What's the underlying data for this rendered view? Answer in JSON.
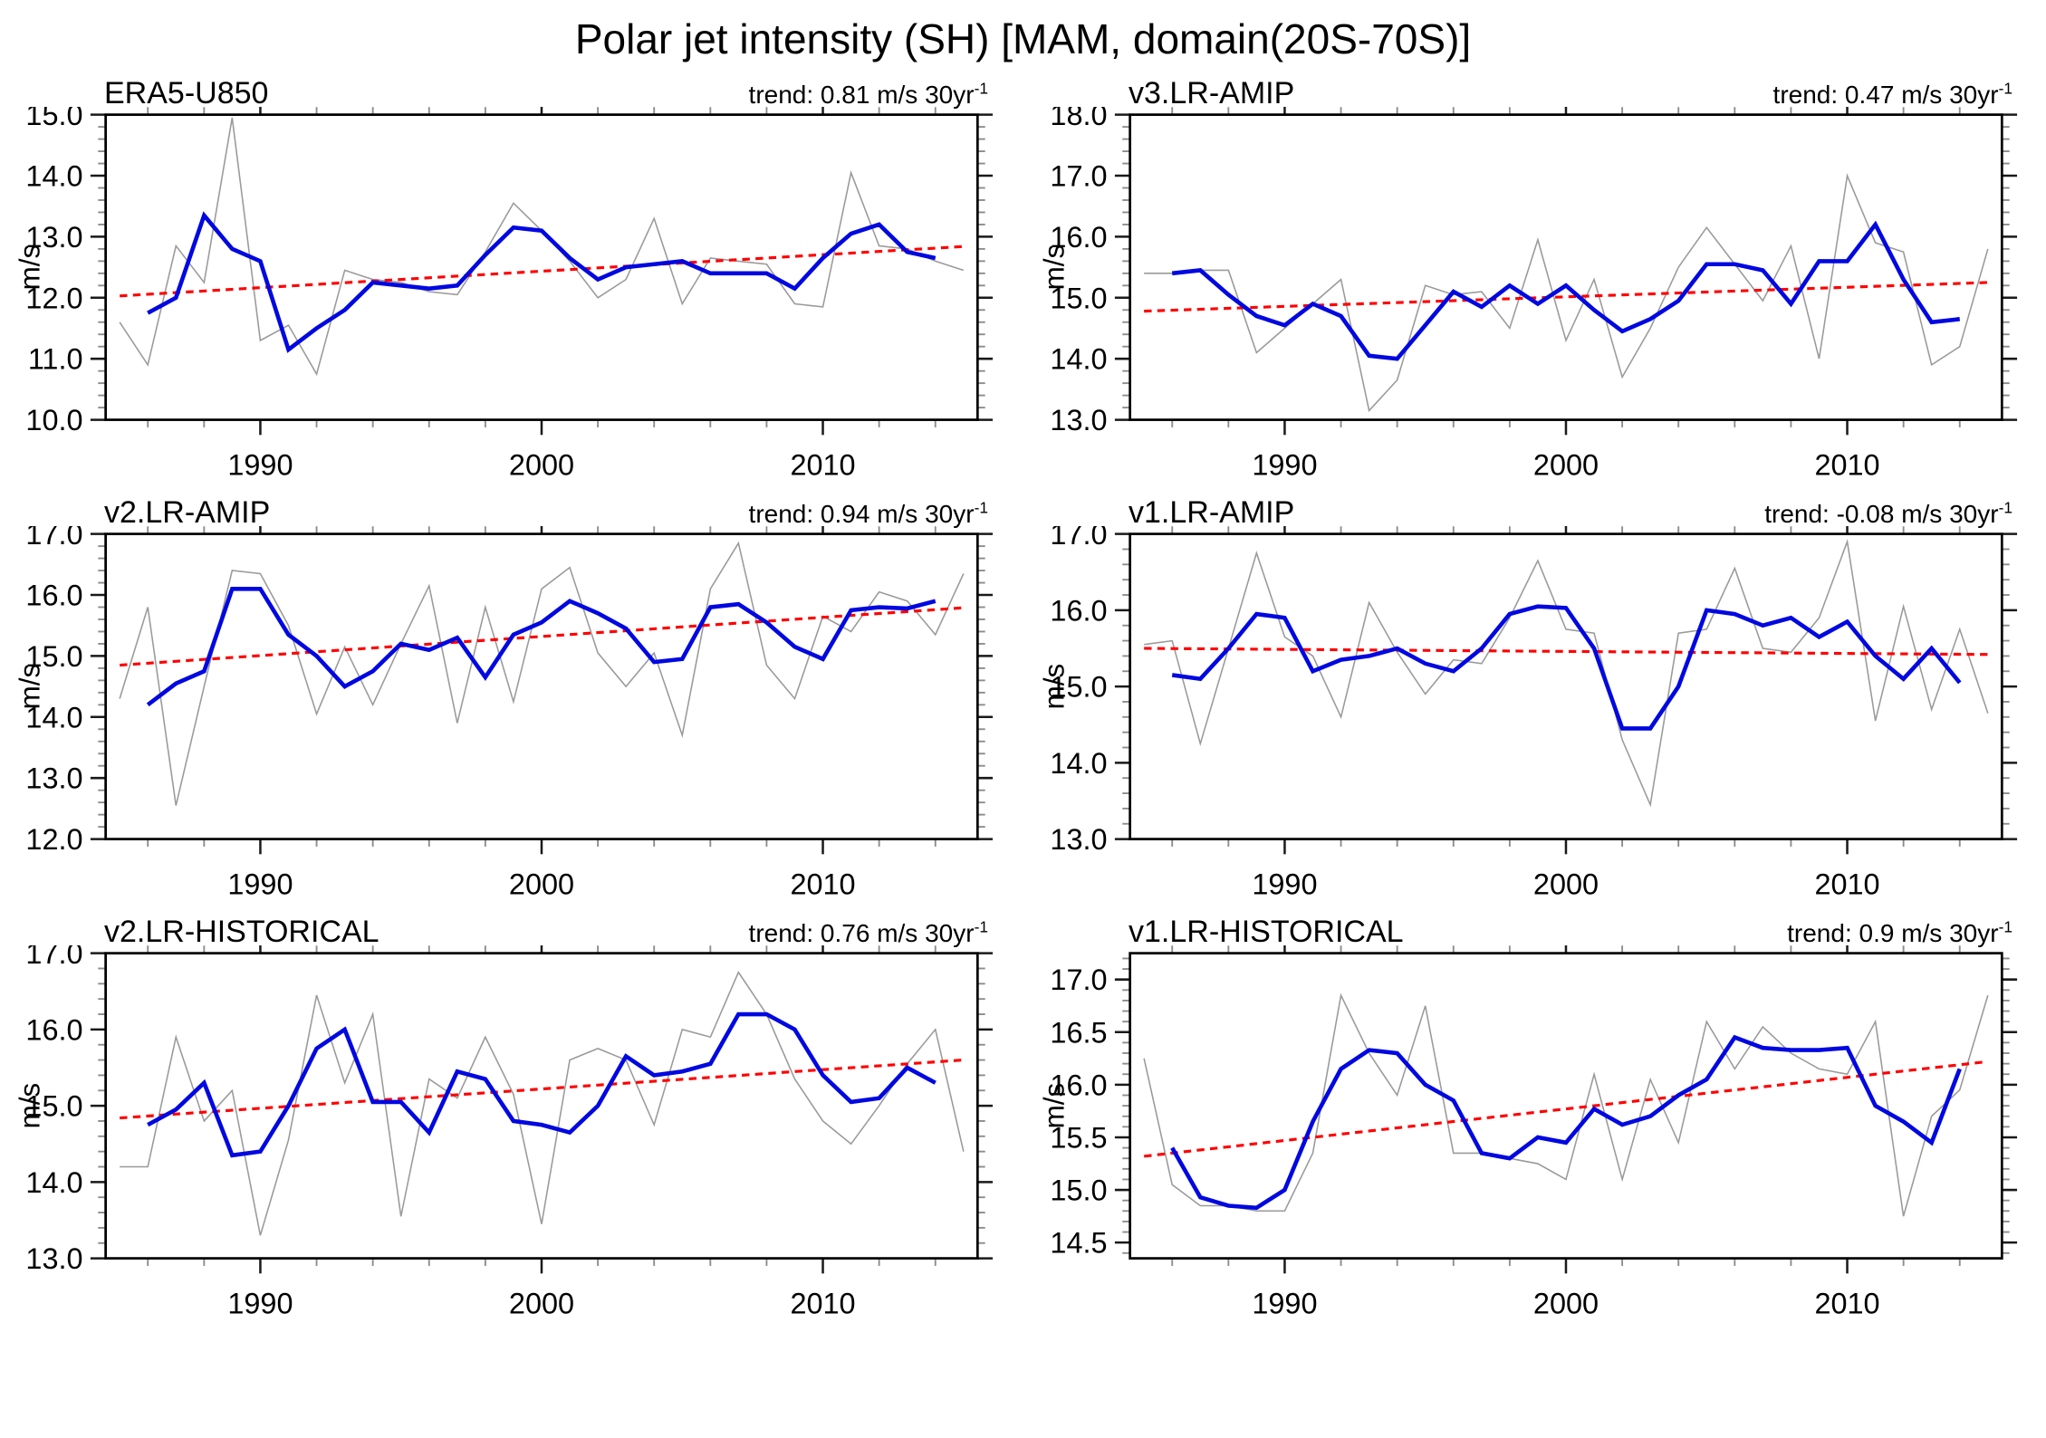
{
  "title": "Polar jet intensity (SH) [MAM, domain(20S-70S)]",
  "colors": {
    "background": "#ffffff",
    "frame": "#000000",
    "major_tick": "#1a1a1a",
    "minor_tick": "#8c8c8c",
    "text": "#000000",
    "raw_line": "#9a9a9a",
    "smoothed_line": "#0008e0",
    "trend_line": "#ff0000"
  },
  "axis": {
    "xlim": [
      1984.5,
      2015.5
    ],
    "x_major": [
      {
        "v": 1990,
        "label": "1990"
      },
      {
        "v": 2000,
        "label": "2000"
      },
      {
        "v": 2010,
        "label": "2010"
      }
    ],
    "x_minor_start": 1986,
    "x_minor_step": 2,
    "x_minor_end": 2014
  },
  "chart_data": [
    {
      "type": "line",
      "name": "ERA5-U850",
      "trend_label": "trend: 0.81 m/s 30yr",
      "trend_sup": "-1",
      "trend_value_per_30yr": 0.81,
      "ylabel": "m/s",
      "ylim": [
        10.0,
        15.0
      ],
      "yticks": [
        10.0,
        11.0,
        12.0,
        13.0,
        14.0,
        15.0
      ],
      "ytick_labels": [
        "10.0",
        "11.0",
        "12.0",
        "13.0",
        "14.0",
        "15.0"
      ],
      "ymajor_step": 1.0,
      "yminor_step": 0.2,
      "series": {
        "raw": {
          "x0": 1985,
          "values": [
            11.6,
            10.9,
            12.85,
            12.25,
            14.95,
            11.3,
            11.55,
            10.75,
            12.45,
            12.3,
            12.25,
            12.1,
            12.05,
            12.75,
            13.55,
            13.1,
            12.6,
            12.0,
            12.3,
            13.3,
            11.9,
            12.65,
            12.6,
            12.55,
            11.9,
            11.85,
            14.05,
            12.85,
            12.8,
            12.6,
            12.45
          ]
        },
        "smoothed": {
          "x0": 1986,
          "values": [
            11.75,
            12.0,
            13.35,
            12.8,
            12.6,
            11.15,
            11.5,
            11.8,
            12.25,
            12.2,
            12.15,
            12.2,
            12.7,
            13.15,
            13.1,
            12.65,
            12.3,
            12.5,
            12.55,
            12.6,
            12.4,
            12.4,
            12.4,
            12.15,
            12.65,
            13.05,
            13.2,
            12.75,
            12.65
          ]
        },
        "trend": {
          "x": [
            1985,
            2015
          ],
          "y": [
            12.03,
            12.84
          ]
        }
      }
    },
    {
      "type": "line",
      "name": "v3.LR-AMIP",
      "trend_label": "trend: 0.47 m/s 30yr",
      "trend_sup": "-1",
      "trend_value_per_30yr": 0.47,
      "ylabel": "m/s",
      "ylim": [
        13.0,
        18.0
      ],
      "yticks": [
        13.0,
        14.0,
        15.0,
        16.0,
        17.0,
        18.0
      ],
      "ytick_labels": [
        "13.0",
        "14.0",
        "15.0",
        "16.0",
        "17.0",
        "18.0"
      ],
      "ymajor_step": 1.0,
      "yminor_step": 0.2,
      "series": {
        "raw": {
          "x0": 1985,
          "values": [
            15.4,
            15.4,
            15.45,
            15.45,
            14.1,
            14.5,
            14.9,
            15.3,
            13.15,
            13.65,
            15.2,
            15.05,
            15.1,
            14.5,
            15.95,
            14.3,
            15.3,
            13.7,
            14.5,
            15.5,
            16.15,
            15.55,
            14.95,
            15.85,
            14.0,
            17.0,
            15.9,
            15.75,
            13.9,
            14.2,
            15.8
          ]
        },
        "smoothed": {
          "x0": 1986,
          "values": [
            15.4,
            15.45,
            15.05,
            14.7,
            14.55,
            14.9,
            14.7,
            14.05,
            14.0,
            14.55,
            15.1,
            14.85,
            15.2,
            14.9,
            15.2,
            14.8,
            14.45,
            14.65,
            14.95,
            15.55,
            15.55,
            15.45,
            14.9,
            15.6,
            15.6,
            16.2,
            15.3,
            14.6,
            14.65
          ]
        },
        "trend": {
          "x": [
            1985,
            2015
          ],
          "y": [
            14.78,
            15.25
          ]
        }
      }
    },
    {
      "type": "line",
      "name": "v2.LR-AMIP",
      "trend_label": "trend: 0.94 m/s 30yr",
      "trend_sup": "-1",
      "trend_value_per_30yr": 0.94,
      "ylabel": "m/s",
      "ylim": [
        12.0,
        17.0
      ],
      "yticks": [
        12.0,
        13.0,
        14.0,
        15.0,
        16.0,
        17.0
      ],
      "ytick_labels": [
        "12.0",
        "13.0",
        "14.0",
        "15.0",
        "16.0",
        "17.0"
      ],
      "ymajor_step": 1.0,
      "yminor_step": 0.2,
      "series": {
        "raw": {
          "x0": 1985,
          "values": [
            14.3,
            15.8,
            12.55,
            14.5,
            16.4,
            16.35,
            15.5,
            14.05,
            15.15,
            14.2,
            15.2,
            16.15,
            13.9,
            15.8,
            14.25,
            16.1,
            16.45,
            15.05,
            14.5,
            15.05,
            13.7,
            16.1,
            16.85,
            14.85,
            14.3,
            15.65,
            15.4,
            16.05,
            15.9,
            15.35,
            16.35
          ]
        },
        "smoothed": {
          "x0": 1986,
          "values": [
            14.2,
            14.55,
            14.75,
            16.1,
            16.1,
            15.35,
            15.0,
            14.5,
            14.75,
            15.2,
            15.1,
            15.3,
            14.65,
            15.35,
            15.55,
            15.9,
            15.7,
            15.45,
            14.9,
            14.95,
            15.8,
            15.85,
            15.55,
            15.15,
            14.95,
            15.75,
            15.8,
            15.78,
            15.9
          ]
        },
        "trend": {
          "x": [
            1985,
            2015
          ],
          "y": [
            14.85,
            15.79
          ]
        }
      }
    },
    {
      "type": "line",
      "name": "v1.LR-AMIP",
      "trend_label": "trend: -0.08 m/s 30yr",
      "trend_sup": "-1",
      "trend_value_per_30yr": -0.08,
      "ylabel": "m/s",
      "ylim": [
        13.0,
        17.0
      ],
      "yticks": [
        13.0,
        14.0,
        15.0,
        16.0,
        17.0
      ],
      "ytick_labels": [
        "13.0",
        "14.0",
        "15.0",
        "16.0",
        "17.0"
      ],
      "ymajor_step": 1.0,
      "yminor_step": 0.2,
      "series": {
        "raw": {
          "x0": 1985,
          "values": [
            15.55,
            15.6,
            14.25,
            15.5,
            16.75,
            15.65,
            15.4,
            14.6,
            16.1,
            15.45,
            14.9,
            15.35,
            15.3,
            15.9,
            16.65,
            15.75,
            15.7,
            14.3,
            13.45,
            15.7,
            15.75,
            16.55,
            15.5,
            15.45,
            15.9,
            16.9,
            14.55,
            16.05,
            14.7,
            15.75,
            14.65
          ]
        },
        "smoothed": {
          "x0": 1986,
          "values": [
            15.15,
            15.1,
            15.5,
            15.95,
            15.9,
            15.2,
            15.35,
            15.4,
            15.5,
            15.3,
            15.2,
            15.5,
            15.95,
            16.05,
            16.03,
            15.5,
            14.45,
            14.45,
            15.0,
            16.0,
            15.95,
            15.8,
            15.9,
            15.65,
            15.85,
            15.4,
            15.1,
            15.5,
            15.05
          ]
        },
        "trend": {
          "x": [
            1985,
            2015
          ],
          "y": [
            15.5,
            15.42
          ]
        }
      }
    },
    {
      "type": "line",
      "name": "v2.LR-HISTORICAL",
      "trend_label": "trend: 0.76 m/s 30yr",
      "trend_sup": "-1",
      "trend_value_per_30yr": 0.76,
      "ylabel": "m/s",
      "ylim": [
        13.0,
        17.0
      ],
      "yticks": [
        13.0,
        14.0,
        15.0,
        16.0,
        17.0
      ],
      "ytick_labels": [
        "13.0",
        "14.0",
        "15.0",
        "16.0",
        "17.0"
      ],
      "ymajor_step": 1.0,
      "yminor_step": 0.2,
      "series": {
        "raw": {
          "x0": 1985,
          "values": [
            14.2,
            14.2,
            15.9,
            14.8,
            15.2,
            13.3,
            14.55,
            16.45,
            15.3,
            16.2,
            13.55,
            15.35,
            15.1,
            15.9,
            15.15,
            13.45,
            15.6,
            15.75,
            15.6,
            14.75,
            16.0,
            15.9,
            16.75,
            16.2,
            15.35,
            14.8,
            14.5,
            15.0,
            15.55,
            16.0,
            14.4
          ]
        },
        "smoothed": {
          "x0": 1986,
          "values": [
            14.75,
            14.95,
            15.3,
            14.35,
            14.4,
            15.0,
            15.75,
            16.0,
            15.05,
            15.05,
            14.65,
            15.45,
            15.35,
            14.8,
            14.75,
            14.65,
            15.0,
            15.65,
            15.4,
            15.45,
            15.55,
            16.2,
            16.2,
            16.0,
            15.4,
            15.05,
            15.1,
            15.5,
            15.3
          ]
        },
        "trend": {
          "x": [
            1985,
            2015
          ],
          "y": [
            14.84,
            15.6
          ]
        }
      }
    },
    {
      "type": "line",
      "name": "v1.LR-HISTORICAL",
      "trend_label": "trend: 0.9 m/s 30yr",
      "trend_sup": "-1",
      "trend_value_per_30yr": 0.9,
      "ylabel": "m/s",
      "ylim": [
        14.35,
        17.25
      ],
      "yticks": [
        14.5,
        15.0,
        15.5,
        16.0,
        16.5,
        17.0
      ],
      "ytick_labels": [
        "14.5",
        "15.0",
        "15.5",
        "16.0",
        "16.5",
        "17.0"
      ],
      "ymajor_step": 0.5,
      "yminor_step": 0.1,
      "series": {
        "raw": {
          "x0": 1985,
          "values": [
            16.25,
            15.05,
            14.85,
            14.85,
            14.8,
            14.8,
            15.35,
            16.85,
            16.3,
            15.9,
            16.75,
            15.35,
            15.35,
            15.3,
            15.25,
            15.1,
            16.1,
            15.1,
            16.05,
            15.45,
            16.6,
            16.15,
            16.55,
            16.3,
            16.15,
            16.1,
            16.6,
            14.75,
            15.7,
            15.95,
            16.85
          ]
        },
        "smoothed": {
          "x0": 1986,
          "values": [
            15.4,
            14.93,
            14.85,
            14.83,
            15.0,
            15.65,
            16.15,
            16.33,
            16.3,
            16.0,
            15.85,
            15.35,
            15.3,
            15.5,
            15.45,
            15.77,
            15.62,
            15.7,
            15.9,
            16.05,
            16.45,
            16.35,
            16.33,
            16.33,
            16.35,
            15.8,
            15.65,
            15.45,
            16.15
          ]
        },
        "trend": {
          "x": [
            1985,
            2015
          ],
          "y": [
            15.32,
            16.22
          ]
        }
      }
    }
  ]
}
